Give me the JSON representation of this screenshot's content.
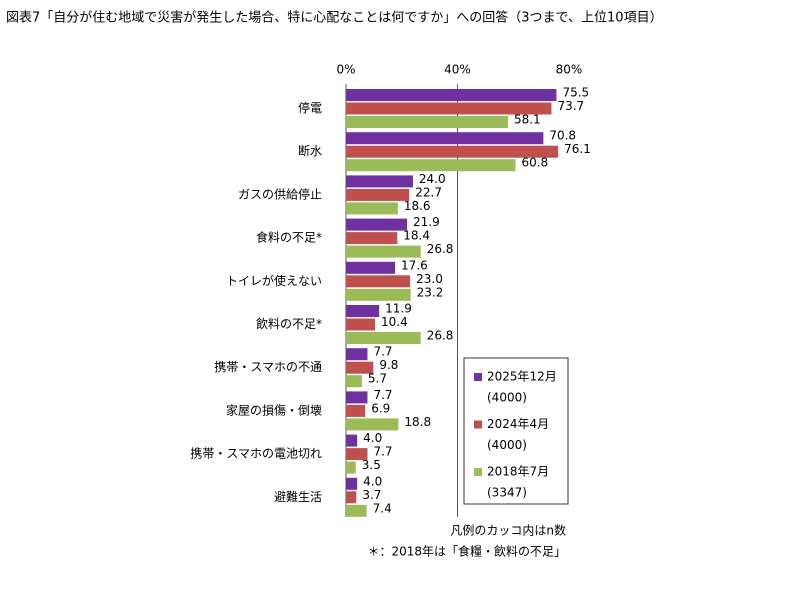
{
  "chart_data": {
    "type": "hbar",
    "title": "図表7「自分が住む地域で災害が発生した場合、特に心配なことは何ですか」への回答（3つまで、上位10項目）",
    "categories": [
      "停電",
      "断水",
      "ガスの供給停止",
      "食料の不足*",
      "トイレが使えない",
      "飲料の不足*",
      "携帯・スマホの不通",
      "家屋の損傷・倒壊",
      "携帯・スマホの電池切れ",
      "避難生活"
    ],
    "series": [
      {
        "name": "2025年12月",
        "sample_size_label": "(4000)",
        "color": "#7030a0",
        "values": [
          75.5,
          70.8,
          24.0,
          21.9,
          17.6,
          11.9,
          7.7,
          7.7,
          4.0,
          4.0
        ],
        "value_labels": [
          "75.5",
          "70.8",
          "24.0",
          "21.9",
          "17.6",
          "11.9",
          "7.7",
          "7.7",
          "4.0",
          "4.0"
        ]
      },
      {
        "name": "2024年4月",
        "sample_size_label": "(4000)",
        "color": "#c0504d",
        "values": [
          73.7,
          76.1,
          22.7,
          18.4,
          23.0,
          10.4,
          9.8,
          6.9,
          7.7,
          3.7
        ],
        "value_labels": [
          "73.7",
          "76.1",
          "22.7",
          "18.4",
          "23.0",
          "10.4",
          "9.8",
          "6.9",
          "7.7",
          "3.7"
        ]
      },
      {
        "name": "2018年7月",
        "sample_size_label": "(3347)",
        "color": "#9bbb59",
        "values": [
          58.1,
          60.8,
          18.6,
          26.8,
          23.2,
          26.8,
          5.7,
          18.8,
          3.5,
          7.4
        ],
        "value_labels": [
          "58.1",
          "60.8",
          "18.6",
          "26.8",
          "23.2",
          "26.8",
          "5.7",
          "18.8",
          "3.5",
          "7.4"
        ]
      }
    ],
    "xlim": [
      0,
      80
    ],
    "xticks": [
      {
        "value": 0,
        "label": "0%"
      },
      {
        "value": 40,
        "label": "40%"
      },
      {
        "value": 80,
        "label": "80%"
      }
    ],
    "grid": true,
    "legend_position": "lower right",
    "notes": [
      "凡例のカッコ内はn数",
      "＊：2018年は「食糧・飲料の不足」"
    ]
  }
}
